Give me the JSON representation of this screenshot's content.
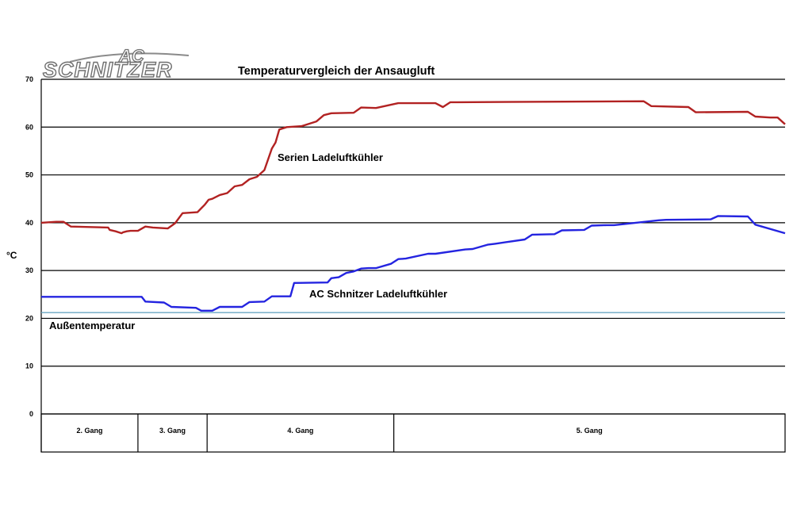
{
  "logo": {
    "text": "SCHNITZER",
    "ac": "AC"
  },
  "chart_data": {
    "type": "line",
    "title": "Temperaturvergleich der Ansaugluft",
    "ylabel": "°C",
    "xlabel": "",
    "ylim": [
      0,
      70
    ],
    "yticks": [
      0,
      10,
      20,
      30,
      40,
      50,
      60,
      70
    ],
    "grid": true,
    "x_domain": [
      0,
      100
    ],
    "gears": [
      {
        "label": "2. Gang",
        "start": 0,
        "end": 13
      },
      {
        "label": "3. Gang",
        "start": 13,
        "end": 22.3
      },
      {
        "label": "4. Gang",
        "start": 22.3,
        "end": 47.4
      },
      {
        "label": "5. Gang",
        "start": 47.4,
        "end": 100
      }
    ],
    "series": [
      {
        "name": "Serien Ladeluftkühler",
        "color": "#b22222",
        "x": [
          0,
          2,
          3,
          4,
          9,
          9.2,
          10,
          10.8,
          11,
          11.5,
          12,
          13,
          14,
          15,
          17,
          18,
          19,
          21,
          22,
          22.5,
          23,
          24,
          25,
          26,
          27,
          28,
          29,
          30,
          31,
          31.5,
          32,
          33,
          35,
          36,
          37,
          38,
          39,
          42,
          43,
          45,
          48,
          49,
          53,
          54,
          55,
          56,
          81,
          82,
          87,
          88,
          95,
          96,
          98,
          99,
          100
        ],
        "values": [
          40,
          40.2,
          40.2,
          39.2,
          39,
          38.5,
          38.2,
          37.8,
          38,
          38.2,
          38.3,
          38.3,
          39.2,
          39,
          38.8,
          39.9,
          42,
          42.2,
          43.8,
          44.8,
          45,
          45.8,
          46.2,
          47.6,
          47.9,
          49.1,
          49.6,
          51,
          55.5,
          56.8,
          59.5,
          60,
          60.2,
          60.7,
          61.2,
          62.5,
          62.9,
          63,
          64.1,
          64,
          65,
          65,
          65,
          64.2,
          65.2,
          65.2,
          65.4,
          64.4,
          64.2,
          63.1,
          63.2,
          62.2,
          62,
          62,
          60.6
        ]
      },
      {
        "name": "AC Schnitzer Ladeluftkühler",
        "color": "#2424e0",
        "x": [
          0,
          13.5,
          14,
          16.5,
          17.5,
          20.8,
          21.5,
          23,
          24,
          27,
          28,
          30,
          31,
          33.5,
          34,
          38.5,
          39,
          40,
          41,
          42,
          43,
          44,
          45,
          47,
          48,
          49,
          52,
          53,
          57,
          58,
          60,
          61,
          65,
          66,
          69,
          70,
          73,
          74,
          76,
          77,
          83,
          84,
          90,
          91,
          95,
          96,
          100
        ],
        "values": [
          24.5,
          24.5,
          23.5,
          23.3,
          22.4,
          22.2,
          21.6,
          21.6,
          22.4,
          22.4,
          23.4,
          23.5,
          24.6,
          24.6,
          27.4,
          27.5,
          28.4,
          28.6,
          29.5,
          29.8,
          30.4,
          30.5,
          30.5,
          31.4,
          32.4,
          32.5,
          33.5,
          33.5,
          34.4,
          34.5,
          35.4,
          35.6,
          36.5,
          37.5,
          37.6,
          38.4,
          38.5,
          39.4,
          39.5,
          39.5,
          40.5,
          40.6,
          40.7,
          41.4,
          41.3,
          39.6,
          37.8
        ]
      },
      {
        "name": "Außentemperatur",
        "color": "#6aa6c2",
        "x": [
          0,
          100
        ],
        "values": [
          21.2,
          21.2
        ]
      }
    ]
  }
}
